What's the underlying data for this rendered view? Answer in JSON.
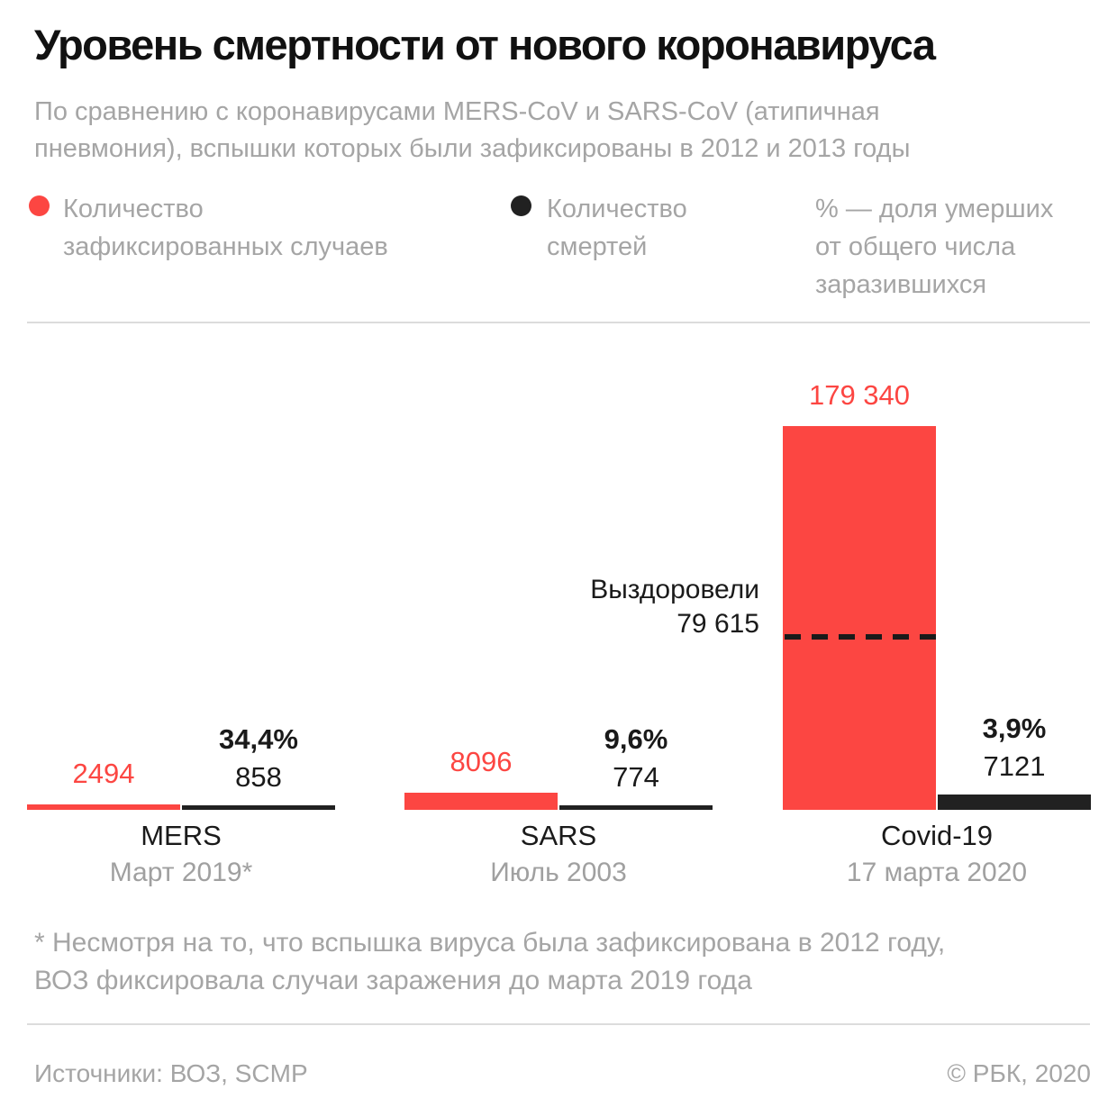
{
  "header": {
    "title": "Уровень смертности от нового коронавируса",
    "subtitle_line1": "По сравнению с коронавирусами MERS-CoV и SARS-CoV (атипичная",
    "subtitle_line2": "пневмония), вспышки которых были зафиксированы в 2012 и 2013 годы"
  },
  "legend": {
    "cases": {
      "label_line1": "Количество",
      "label_line2": "зафиксированных случаев",
      "color": "#fc4642"
    },
    "deaths": {
      "label_line1": "Количество",
      "label_line2": "смертей",
      "color": "#212121"
    },
    "note": {
      "line1": "% — доля умерших",
      "line2": "от общего числа",
      "line3": "заразившихся"
    }
  },
  "chart_data": {
    "type": "bar",
    "title": "Уровень смертности от нового коронавируса",
    "categories": [
      "MERS",
      "SARS",
      "Covid-19"
    ],
    "category_dates": [
      "Март 2019*",
      "Июль 2003",
      "17 марта 2020"
    ],
    "series": [
      {
        "name": "Количество зафиксированных случаев",
        "color": "#fc4642",
        "values": [
          2494,
          8096,
          179340
        ],
        "value_labels": [
          "2494",
          "8096",
          "179 340"
        ]
      },
      {
        "name": "Количество смертей",
        "color": "#212121",
        "values": [
          858,
          774,
          7121
        ],
        "value_labels": [
          "858",
          "774",
          "7121"
        ]
      }
    ],
    "mortality_rates": [
      "34,4%",
      "9,6%",
      "3,9%"
    ],
    "annotation": {
      "label": "Выздоровели",
      "value": "79 615",
      "value_numeric": 79615,
      "applies_to": "Covid-19"
    },
    "ylim": [
      0,
      179340
    ],
    "grid": false,
    "legend_position": "top"
  },
  "footnote": {
    "line1": "* Несмотря на то, что вспышка вируса была зафиксирована в 2012 году,",
    "line2": "ВОЗ фиксировала случаи заражения до марта 2019 года"
  },
  "footer": {
    "sources": "Источники: ВОЗ, SCMP",
    "copyright": "© РБК, 2020"
  }
}
